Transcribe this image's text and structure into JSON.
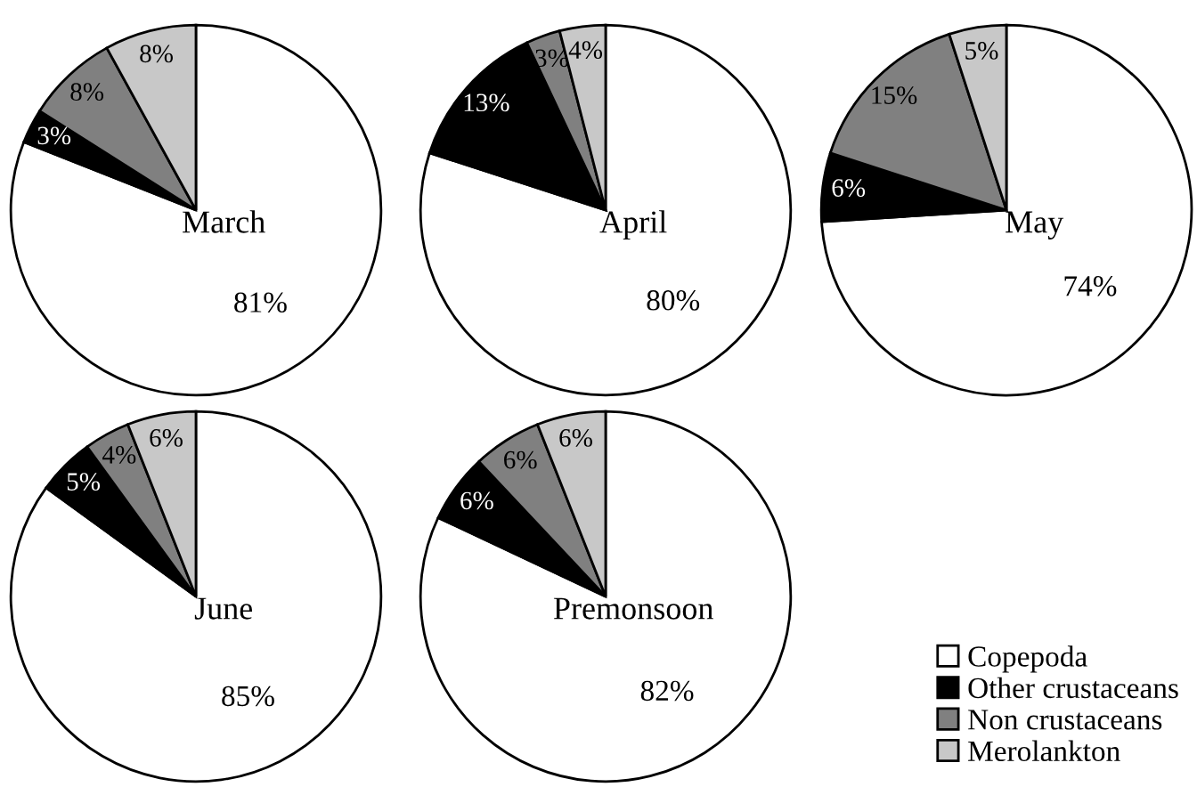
{
  "chart_data": [
    {
      "type": "pie",
      "title": "March",
      "categories": [
        "Copepoda",
        "Other crustaceans",
        "Non crustaceans",
        "Merolankton"
      ],
      "values": [
        81,
        3,
        8,
        8
      ],
      "value_labels": [
        "81%",
        "3%",
        "8%",
        "8%"
      ],
      "colors": [
        "#ffffff",
        "#000000",
        "#808080",
        "#c8c8c8"
      ],
      "legend": "bottom right"
    },
    {
      "type": "pie",
      "title": "April",
      "categories": [
        null,
        null,
        null,
        null
      ],
      "values": [
        80,
        13,
        3,
        4
      ],
      "value_labels": [
        "80%",
        "13%",
        "3%",
        "4%"
      ],
      "colors": [
        "#ffffff",
        "#000000",
        "#808080",
        "#c8c8c8"
      ]
    },
    {
      "type": "pie",
      "title": "May",
      "categories": [
        null,
        null,
        null,
        null
      ],
      "values": [
        74,
        6,
        15,
        5
      ],
      "value_labels": [
        "74%",
        "6%",
        "15%",
        "5%"
      ],
      "colors": [
        "#ffffff",
        "#000000",
        "#808080",
        "#c8c8c8"
      ]
    },
    {
      "type": "pie",
      "title": "June",
      "categories": [
        null,
        null,
        null,
        null
      ],
      "values": [
        85,
        5,
        4,
        6
      ],
      "value_labels": [
        "85%",
        "5%",
        "4%",
        "6%"
      ],
      "colors": [
        "#ffffff",
        "#000000",
        "#808080",
        "#c8c8c8"
      ]
    },
    {
      "type": "pie",
      "title": "Premonsoon",
      "categories": [
        null,
        null,
        null,
        null
      ],
      "values": [
        82,
        6,
        6,
        6
      ],
      "value_labels": [
        "82%",
        "6%",
        "6%",
        "6%"
      ],
      "colors": [
        "#ffffff",
        "#000000",
        "#808080",
        "#c8c8c8"
      ]
    }
  ]
}
